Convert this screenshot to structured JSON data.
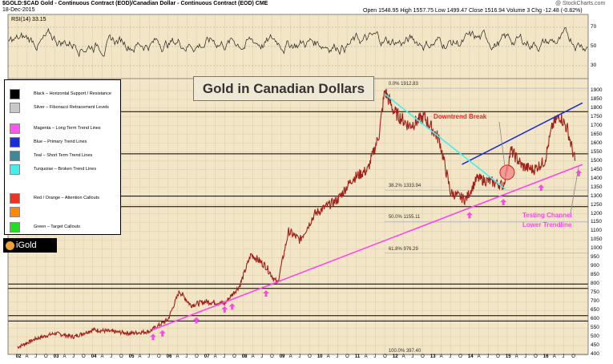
{
  "header": {
    "symbol_line": "$GOLD:$CAD Gold - Continuous Contract (EOD)/Canadian Dollar - Continuous Contract (EOD) CME",
    "date": "18-Dec-2015",
    "quote": "Open 1548.95  High 1557.75  Low 1499.47  Close 1516.94  Volume 3  Chg -12.48 (-0.82%)",
    "watermark": "@ StockCharts.com",
    "rsi_label": "RSI(14) 33.15"
  },
  "chart_title": "Gold in Canadian Dollars",
  "logo_text": "iGold",
  "legend": [
    {
      "label": "Black – Horizontal Support / Resistance",
      "color": "#000000"
    },
    {
      "label": "Silver – Fibonacci Retracement Levels",
      "color": "#c8c8c8"
    },
    {
      "label": "Magenta – Long Term Trend Lines",
      "color": "#ff55ee"
    },
    {
      "label": "Blue – Primary Trend Lines",
      "color": "#1a2fd6"
    },
    {
      "label": "Teal – Short Term Trend Lines",
      "color": "#3a8a9a"
    },
    {
      "label": "Turquoise – Broken Trend Lines",
      "color": "#44eeee"
    },
    {
      "label": "Red / Orange – Attention Callouts",
      "color": "#ee3322"
    },
    {
      "label": "",
      "color": "#ff8800"
    },
    {
      "label": "Green – Target Callouts",
      "color": "#22dd22"
    }
  ],
  "callouts": {
    "downtrend_break": "Downtrend Break",
    "testing_line1": "Testing Channel",
    "testing_line2": "Lower Trendline"
  },
  "fib_labels": [
    "0.0% 1912.83",
    "38.2% 1333.94",
    "50.0% 1155.11",
    "61.8% 976.29",
    "100.0% 397.40"
  ],
  "colors": {
    "background": "#f3e6c6",
    "price_bars": "#a0201a",
    "rsi_line": "#222222",
    "horizontal": "#000000",
    "fib": "#c0c0c0",
    "magenta": "#ff44ee",
    "blue": "#1a2fd6",
    "turquoise": "#44eeee",
    "callout_red": "#ee2222"
  },
  "chart_data": {
    "type": "line",
    "x_labels": [
      "02",
      "A",
      "J",
      "O",
      "03",
      "A",
      "J",
      "O",
      "04",
      "A",
      "J",
      "O",
      "05",
      "A",
      "J",
      "O",
      "06",
      "A",
      "J",
      "O",
      "07",
      "A",
      "J",
      "O",
      "08",
      "A",
      "J",
      "O",
      "09",
      "A",
      "J",
      "O",
      "10",
      "A",
      "J",
      "O",
      "11",
      "A",
      "J",
      "O",
      "12",
      "A",
      "J",
      "O",
      "13",
      "A",
      "J",
      "O",
      "14",
      "A",
      "J",
      "O",
      "15",
      "A",
      "J",
      "O",
      "16",
      "A",
      "J",
      "O"
    ],
    "year_labels": [
      "02",
      "03",
      "04",
      "05",
      "06",
      "07",
      "08",
      "09",
      "10",
      "11",
      "12",
      "13",
      "14",
      "15",
      "16"
    ],
    "y_ticks": [
      400,
      450,
      500,
      550,
      600,
      650,
      700,
      750,
      800,
      850,
      900,
      950,
      1000,
      1050,
      1100,
      1150,
      1200,
      1250,
      1300,
      1350,
      1400,
      1450,
      1500,
      1550,
      1600,
      1650,
      1700,
      1750,
      1800,
      1850,
      1900
    ],
    "ylim": [
      400,
      1950
    ],
    "rsi_ticks": [
      30,
      50,
      70
    ],
    "price_series": {
      "name": "$GOLD:$CAD",
      "points": [
        [
          2002.0,
          440
        ],
        [
          2002.5,
          490
        ],
        [
          2003.0,
          520
        ],
        [
          2003.5,
          500
        ],
        [
          2004.0,
          540
        ],
        [
          2004.5,
          530
        ],
        [
          2005.0,
          520
        ],
        [
          2005.5,
          530
        ],
        [
          2006.0,
          600
        ],
        [
          2006.3,
          760
        ],
        [
          2006.6,
          680
        ],
        [
          2007.0,
          700
        ],
        [
          2007.5,
          690
        ],
        [
          2007.9,
          790
        ],
        [
          2008.2,
          970
        ],
        [
          2008.6,
          900
        ],
        [
          2008.9,
          800
        ],
        [
          2009.2,
          1100
        ],
        [
          2009.5,
          1050
        ],
        [
          2009.9,
          1200
        ],
        [
          2010.5,
          1280
        ],
        [
          2010.9,
          1400
        ],
        [
          2011.3,
          1450
        ],
        [
          2011.6,
          1650
        ],
        [
          2011.75,
          1900
        ],
        [
          2012.0,
          1780
        ],
        [
          2012.4,
          1700
        ],
        [
          2012.8,
          1750
        ],
        [
          2013.2,
          1620
        ],
        [
          2013.5,
          1320
        ],
        [
          2013.9,
          1280
        ],
        [
          2014.2,
          1400
        ],
        [
          2014.6,
          1380
        ],
        [
          2014.9,
          1360
        ],
        [
          2015.1,
          1560
        ],
        [
          2015.4,
          1470
        ],
        [
          2015.7,
          1450
        ],
        [
          2016.0,
          1500
        ],
        [
          2016.2,
          1700
        ],
        [
          2016.4,
          1760
        ],
        [
          2016.6,
          1680
        ],
        [
          2016.8,
          1500
        ]
      ]
    },
    "horizontal_lines": [
      1780,
      1540,
      1300,
      1240,
      800,
      775,
      620,
      590
    ],
    "fib_levels": [
      {
        "label": "0.0%",
        "value": 1912.83
      },
      {
        "label": "38.2%",
        "value": 1333.94
      },
      {
        "label": "50.0%",
        "value": 1155.11
      },
      {
        "label": "61.8%",
        "value": 976.29
      },
      {
        "label": "100.0%",
        "value": 397.4
      }
    ],
    "trend_lines": [
      {
        "color": "magenta",
        "points": [
          [
            2005.6,
            540
          ],
          [
            2017.0,
            1480
          ]
        ]
      },
      {
        "color": "blue",
        "points": [
          [
            2013.8,
            1480
          ],
          [
            2017.0,
            1830
          ]
        ]
      },
      {
        "color": "turquoise",
        "points": [
          [
            2011.75,
            1880
          ],
          [
            2014.95,
            1340
          ]
        ]
      }
    ],
    "arrows_x": [
      2005.6,
      2005.85,
      2006.75,
      2007.5,
      2007.7,
      2008.6,
      2014.0,
      2014.9,
      2015.9,
      2016.9
    ],
    "circle_at": [
      2015.0,
      1435
    ]
  }
}
